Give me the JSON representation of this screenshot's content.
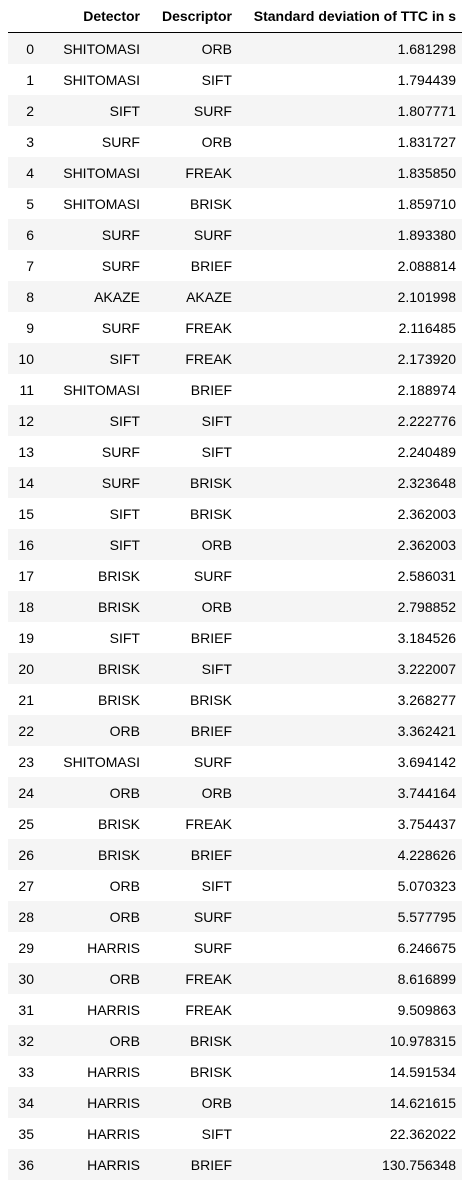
{
  "table": {
    "columns": [
      "",
      "Detector",
      "Descriptor",
      "Standard deviation of TTC in s"
    ],
    "rows": [
      {
        "index": "0",
        "detector": "SHITOMASI",
        "descriptor": "ORB",
        "std": "1.681298"
      },
      {
        "index": "1",
        "detector": "SHITOMASI",
        "descriptor": "SIFT",
        "std": "1.794439"
      },
      {
        "index": "2",
        "detector": "SIFT",
        "descriptor": "SURF",
        "std": "1.807771"
      },
      {
        "index": "3",
        "detector": "SURF",
        "descriptor": "ORB",
        "std": "1.831727"
      },
      {
        "index": "4",
        "detector": "SHITOMASI",
        "descriptor": "FREAK",
        "std": "1.835850"
      },
      {
        "index": "5",
        "detector": "SHITOMASI",
        "descriptor": "BRISK",
        "std": "1.859710"
      },
      {
        "index": "6",
        "detector": "SURF",
        "descriptor": "SURF",
        "std": "1.893380"
      },
      {
        "index": "7",
        "detector": "SURF",
        "descriptor": "BRIEF",
        "std": "2.088814"
      },
      {
        "index": "8",
        "detector": "AKAZE",
        "descriptor": "AKAZE",
        "std": "2.101998"
      },
      {
        "index": "9",
        "detector": "SURF",
        "descriptor": "FREAK",
        "std": "2.116485"
      },
      {
        "index": "10",
        "detector": "SIFT",
        "descriptor": "FREAK",
        "std": "2.173920"
      },
      {
        "index": "11",
        "detector": "SHITOMASI",
        "descriptor": "BRIEF",
        "std": "2.188974"
      },
      {
        "index": "12",
        "detector": "SIFT",
        "descriptor": "SIFT",
        "std": "2.222776"
      },
      {
        "index": "13",
        "detector": "SURF",
        "descriptor": "SIFT",
        "std": "2.240489"
      },
      {
        "index": "14",
        "detector": "SURF",
        "descriptor": "BRISK",
        "std": "2.323648"
      },
      {
        "index": "15",
        "detector": "SIFT",
        "descriptor": "BRISK",
        "std": "2.362003"
      },
      {
        "index": "16",
        "detector": "SIFT",
        "descriptor": "ORB",
        "std": "2.362003"
      },
      {
        "index": "17",
        "detector": "BRISK",
        "descriptor": "SURF",
        "std": "2.586031"
      },
      {
        "index": "18",
        "detector": "BRISK",
        "descriptor": "ORB",
        "std": "2.798852"
      },
      {
        "index": "19",
        "detector": "SIFT",
        "descriptor": "BRIEF",
        "std": "3.184526"
      },
      {
        "index": "20",
        "detector": "BRISK",
        "descriptor": "SIFT",
        "std": "3.222007"
      },
      {
        "index": "21",
        "detector": "BRISK",
        "descriptor": "BRISK",
        "std": "3.268277"
      },
      {
        "index": "22",
        "detector": "ORB",
        "descriptor": "BRIEF",
        "std": "3.362421"
      },
      {
        "index": "23",
        "detector": "SHITOMASI",
        "descriptor": "SURF",
        "std": "3.694142"
      },
      {
        "index": "24",
        "detector": "ORB",
        "descriptor": "ORB",
        "std": "3.744164"
      },
      {
        "index": "25",
        "detector": "BRISK",
        "descriptor": "FREAK",
        "std": "3.754437"
      },
      {
        "index": "26",
        "detector": "BRISK",
        "descriptor": "BRIEF",
        "std": "4.228626"
      },
      {
        "index": "27",
        "detector": "ORB",
        "descriptor": "SIFT",
        "std": "5.070323"
      },
      {
        "index": "28",
        "detector": "ORB",
        "descriptor": "SURF",
        "std": "5.577795"
      },
      {
        "index": "29",
        "detector": "HARRIS",
        "descriptor": "SURF",
        "std": "6.246675"
      },
      {
        "index": "30",
        "detector": "ORB",
        "descriptor": "FREAK",
        "std": "8.616899"
      },
      {
        "index": "31",
        "detector": "HARRIS",
        "descriptor": "FREAK",
        "std": "9.509863"
      },
      {
        "index": "32",
        "detector": "ORB",
        "descriptor": "BRISK",
        "std": "10.978315"
      },
      {
        "index": "33",
        "detector": "HARRIS",
        "descriptor": "BRISK",
        "std": "14.591534"
      },
      {
        "index": "34",
        "detector": "HARRIS",
        "descriptor": "ORB",
        "std": "14.621615"
      },
      {
        "index": "35",
        "detector": "HARRIS",
        "descriptor": "SIFT",
        "std": "22.362022"
      },
      {
        "index": "36",
        "detector": "HARRIS",
        "descriptor": "BRIEF",
        "std": "130.756348"
      }
    ]
  }
}
